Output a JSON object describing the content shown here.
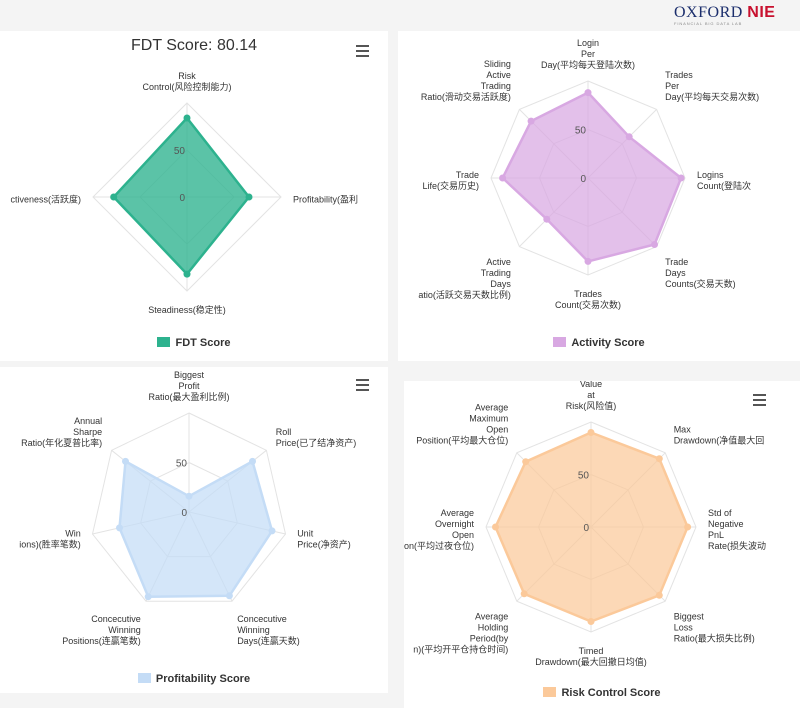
{
  "logo": {
    "oxford": "OXFORD",
    "nie": "NIE",
    "subtitle": "FINANCIAL BIG DATA LAB"
  },
  "chart_data": [
    {
      "type": "radar",
      "title": "FDT Score: 80.14",
      "axes": [
        "Risk\nControl(风险控制能力)",
        "Profitability(盈利",
        "Steadiness(稳定性)",
        "ctiveness(活跃度)"
      ],
      "tick_labels": [
        "0",
        "50"
      ],
      "rlim": [
        0,
        100
      ],
      "series": [
        {
          "name": "FDT Score",
          "values": [
            84,
            66,
            82,
            78
          ],
          "color": "#2db28e"
        }
      ]
    },
    {
      "type": "radar",
      "title": "",
      "axes": [
        "Login\nPer\nDay(平均每天登陆次数)",
        "Trades\nPer\nDay(平均每天交易次数)",
        "Logins\nCount(登陆次",
        "Trade\nDays\nCounts(交易天数)",
        "Trades\nCount(交易次数)",
        "Active\nTrading\nDays\natio(活跃交易天数比例)",
        "Trade\nLife(交易历史)",
        "Sliding\nActive\nTrading\nRatio(滑动交易活跃度)"
      ],
      "tick_labels": [
        "0",
        "50"
      ],
      "rlim": [
        0,
        100
      ],
      "series": [
        {
          "name": "Activity Score",
          "values": [
            88,
            60,
            96,
            97,
            86,
            60,
            88,
            83
          ],
          "color": "#d8a8e2"
        }
      ]
    },
    {
      "type": "radar",
      "title": "",
      "axes": [
        "Biggest\nProfit\nRatio(最大盈利比例)",
        "Roll\nPrice(已了结净资产)",
        "Unit\nPrice(净资产)",
        "Concecutive\nWinning\nDays(连赢天数)",
        "Concecutive\nWinning\nPositions(连赢笔数)",
        "Win\nions)(胜率笔数)",
        "Annual\nSharpe\nRatio(年化夏普比率)"
      ],
      "tick_labels": [
        "0",
        "50"
      ],
      "rlim": [
        0,
        100
      ],
      "series": [
        {
          "name": "Profitability Score",
          "values": [
            16,
            82,
            86,
            94,
            95,
            72,
            82
          ],
          "color": "#c4dcf6"
        }
      ]
    },
    {
      "type": "radar",
      "title": "",
      "axes": [
        "Value\nat\nRisk(风险值)",
        "Max\nDrawdown(净值最大回",
        "Std of\nNegative\nPnL\nRate(损失波动",
        "Biggest\nLoss\nRatio(最大损失比例)",
        "Timed\nDrawdown(最大回撤日均值)",
        "Average\nHolding\nPeriod(by\nn)(平均开平仓持仓时间)",
        "Average\nOvernight\nOpen\nPosition(平均过夜仓位)",
        "Average\nMaximum\nOpen\nPosition(平均最大仓位)"
      ],
      "tick_labels": [
        "0",
        "50"
      ],
      "rlim": [
        0,
        100
      ],
      "series": [
        {
          "name": "Risk Control Score",
          "values": [
            90,
            92,
            92,
            92,
            90,
            90,
            91,
            88
          ],
          "color": "#fbc99a"
        }
      ]
    }
  ]
}
